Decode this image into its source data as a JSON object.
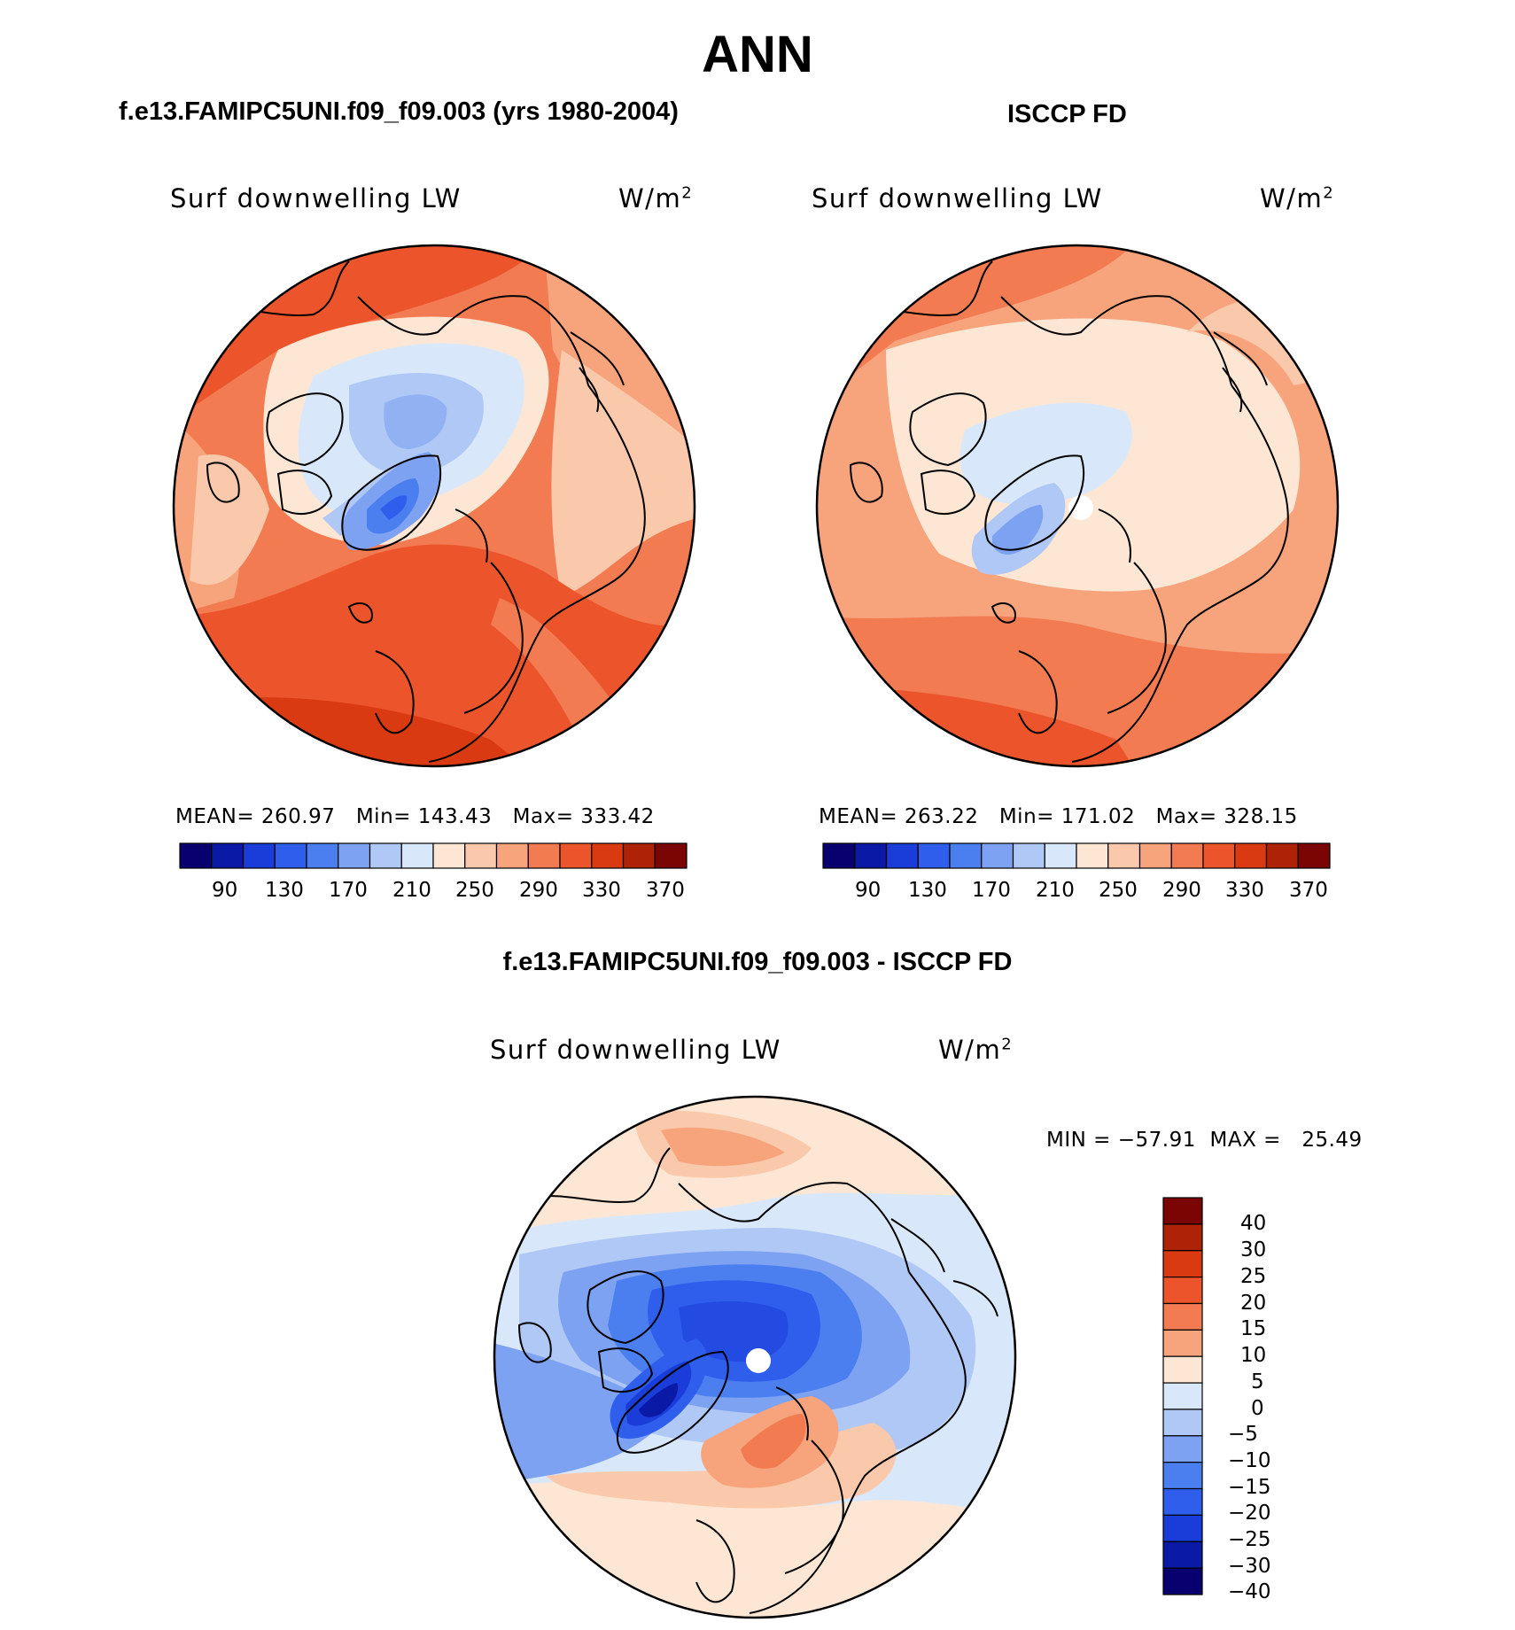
{
  "figure": {
    "season": "ANN",
    "left_title": "f.e13.FAMIPC5UNI.f09_f09.003 (yrs 1980-2004)",
    "right_title": "ISCCP FD",
    "diff_title": "f.e13.FAMIPC5UNI.f09_f09.003 - ISCCP FD"
  },
  "panels": {
    "model": {
      "variable": "Surf downwelling LW",
      "units": "W/m",
      "units_sup": "2",
      "mean_label": "MEAN=",
      "mean": "260.97",
      "min_label": "Min=",
      "min": "143.43",
      "max_label": "Max=",
      "max": "333.42"
    },
    "obs": {
      "variable": "Surf downwelling LW",
      "units": "W/m",
      "units_sup": "2",
      "mean_label": "MEAN=",
      "mean": "263.22",
      "min_label": "Min=",
      "min": "171.02",
      "max_label": "Max=",
      "max": "328.15"
    },
    "diff": {
      "variable": "Surf downwelling LW",
      "units": "W/m",
      "units_sup": "2",
      "min_label": "MIN =",
      "min": "−57.91",
      "max_label": "MAX =",
      "max": "25.49"
    }
  },
  "colorbars": {
    "absolute": {
      "colors": [
        "#08006e",
        "#0a1aa6",
        "#1a3dd9",
        "#2f5eed",
        "#4b7ff0",
        "#7ea2f2",
        "#b0c8f5",
        "#d8e8fa",
        "#fde7d4",
        "#fac8aa",
        "#f7a37c",
        "#f27b52",
        "#ec552b",
        "#d93a12",
        "#ae2208",
        "#7a0503"
      ],
      "labels": [
        "90",
        "130",
        "170",
        "210",
        "250",
        "290",
        "330",
        "370"
      ]
    },
    "difference": {
      "colors_top_to_bottom": [
        "#7a0503",
        "#ae2208",
        "#d93a12",
        "#ec552b",
        "#f27b52",
        "#f7a37c",
        "#fde7d4",
        "#d8e8fa",
        "#b0c8f5",
        "#7ea2f2",
        "#4b7ff0",
        "#2f5eed",
        "#1a3dd9",
        "#0a1aa6",
        "#08006e"
      ],
      "labels_top_to_bottom": [
        "40",
        "30",
        "25",
        "20",
        "15",
        "10",
        "5",
        "0",
        "−5",
        "−10",
        "−15",
        "−20",
        "−25",
        "−30",
        "−40"
      ]
    }
  },
  "map_colors": {
    "outline": "#000000",
    "missing": "#ffffff"
  }
}
